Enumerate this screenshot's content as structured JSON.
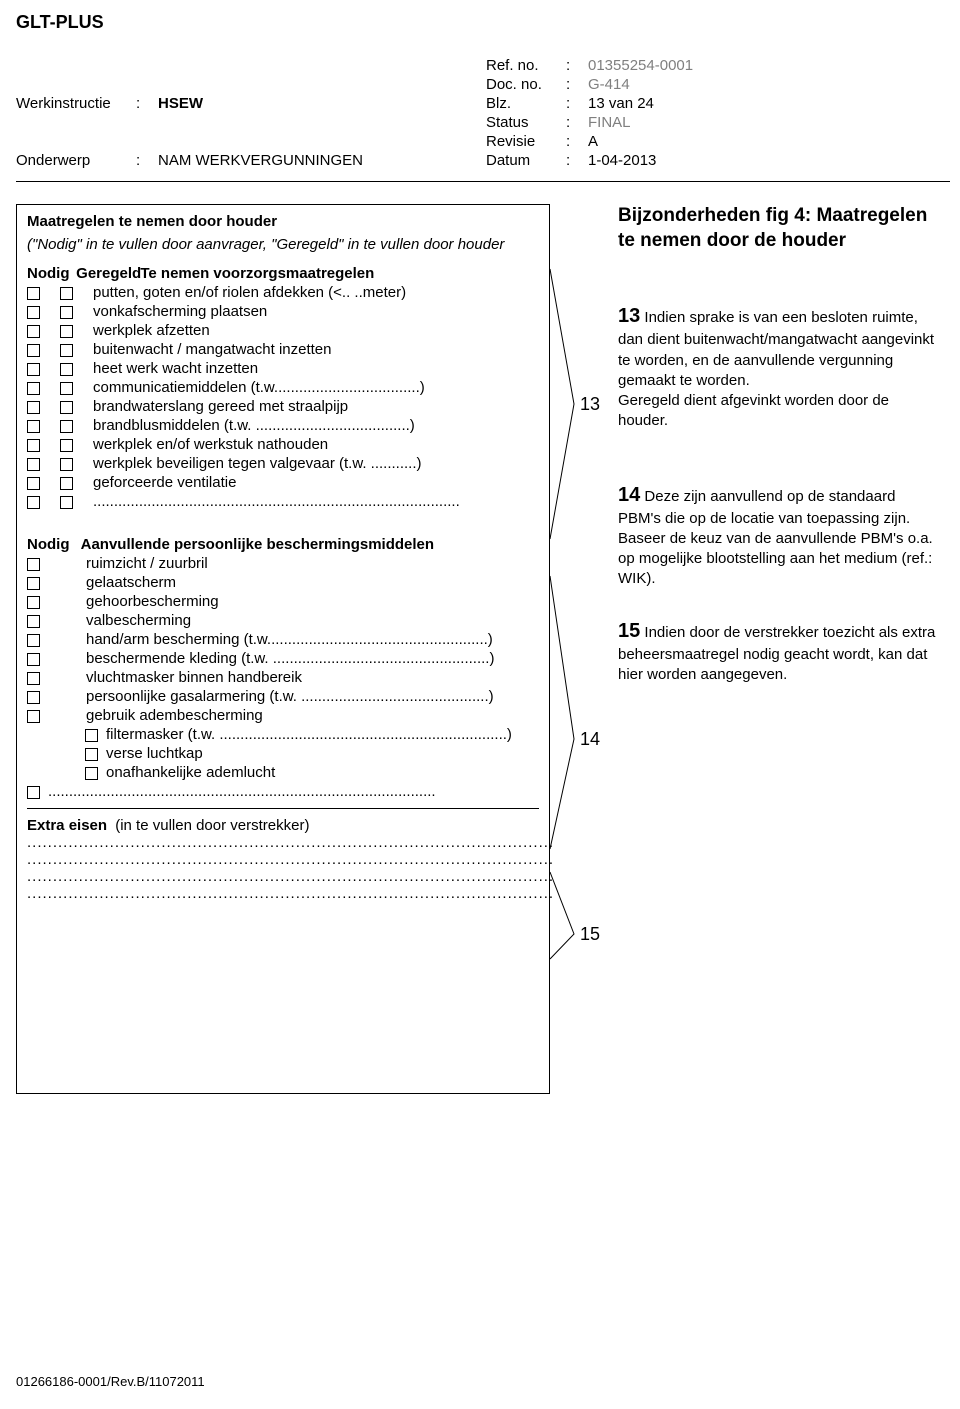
{
  "header": {
    "title": "GLT-PLUS",
    "left": [
      {
        "label": "Werkinstructie",
        "value": "HSEW",
        "bold": true
      },
      {
        "label": "Onderwerp",
        "value": "NAM WERKVERGUNNINGEN"
      }
    ],
    "right": [
      {
        "label": "Ref. no.",
        "value": "01355254-0001",
        "gray": true
      },
      {
        "label": "Doc. no.",
        "value": "G-414",
        "gray": true
      },
      {
        "label": "Blz.",
        "value": "13 van 24"
      },
      {
        "label": "Status",
        "value": "FINAL",
        "gray": true
      },
      {
        "label": "Revisie",
        "value": "A"
      },
      {
        "label": "Datum",
        "value": "1-04-2013"
      }
    ]
  },
  "form": {
    "heading": "Maatregelen te nemen door houder",
    "sub": "(\"Nodig\" in te vullen door aanvrager, \"Geregeld\" in te vullen door houder",
    "row13head": "Nodig  Geregeld Te nemen voorzorgsmaatregelen",
    "items13": [
      "putten, goten en/of riolen afdekken (<.. ..meter)",
      "vonkafscherming plaatsen",
      "werkplek afzetten",
      "buitenwacht / mangatwacht inzetten",
      "heet werk wacht inzetten",
      "communicatiemiddelen (t.w...................................)",
      "brandwaterslang gereed met straalpijp",
      "brandblusmiddelen (t.w. .....................................)",
      "werkplek en/of werkstuk nathouden",
      "werkplek beveiligen tegen valgevaar (t.w. ...........)",
      "geforceerde ventilatie",
      "........................................................................................"
    ],
    "row14head": "Nodig   Aanvullende persoonlijke beschermingsmiddelen",
    "items14": [
      "ruimzicht / zuurbril",
      "gelaatscherm",
      "gehoorbescherming",
      "valbescherming",
      "hand/arm bescherming (t.w.....................................................)",
      "beschermende kleding (t.w. ....................................................)",
      "vluchtmasker binnen handbereik",
      "persoonlijke gasalarmering (t.w. .............................................)",
      "gebruik adembescherming"
    ],
    "sub14": [
      "filtermasker (t.w. .....................................................................)",
      "verse luchtkap",
      "onafhankelijke ademlucht"
    ],
    "blank14": ".............................................................................................",
    "heading15": "Extra eisen",
    "suffix15": "(in te vullen door verstrekker)",
    "lines15": [
      "......................................................................................................",
      "......................................................................................................",
      "......................................................................................................",
      "......................................................................................................"
    ]
  },
  "callouts": {
    "n13": "13",
    "n14": "14",
    "n15": "15"
  },
  "notes": {
    "title": "Bijzonderheden fig 4: Maatregelen te nemen door de houder",
    "n13": {
      "num": "13",
      "text": " Indien sprake is van een besloten ruimte, dan dient buitenwacht/mangatwacht aangevinkt te worden, en de aanvullende vergunning gemaakt te worden.\nGeregeld dient afgevinkt worden door de houder."
    },
    "n14": {
      "num": "14",
      "text": " Deze zijn aanvullend op de standaard PBM's die op de locatie van toepassing zijn. Baseer de keuz van de aanvullende PBM's o.a. op mogelijke blootstelling aan het medium (ref.: WIK)."
    },
    "n15": {
      "num": "15",
      "text": " Indien door de verstrekker toezicht als extra beheersmaatregel nodig geacht wordt, kan dat hier worden aangegeven."
    }
  },
  "footer": "01266186-0001/Rev.B/11072011"
}
